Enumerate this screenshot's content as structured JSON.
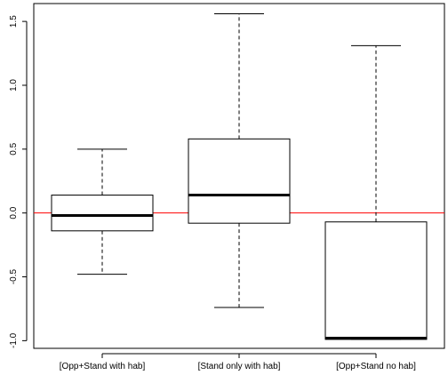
{
  "chart_data": {
    "type": "boxplot",
    "title": "",
    "xlabel": "",
    "ylabel": "",
    "categories": [
      "[Opp+Stand with hab]",
      "[Stand only with hab]",
      "[Opp+Stand no hab]"
    ],
    "boxes": [
      {
        "category": "[Opp+Stand with hab]",
        "whisker_low": -0.48,
        "q1": -0.14,
        "median": -0.02,
        "q3": 0.14,
        "whisker_high": 0.5
      },
      {
        "category": "[Stand only with hab]",
        "whisker_low": -0.74,
        "q1": -0.08,
        "median": 0.14,
        "q3": 0.58,
        "whisker_high": 1.56
      },
      {
        "category": "[Opp+Stand no hab]",
        "whisker_low": -0.99,
        "q1": -0.99,
        "median": -0.98,
        "q3": -0.07,
        "whisker_high": 1.31
      }
    ],
    "reference_line": {
      "y": 0.0,
      "color": "#ff0000"
    },
    "ylim": [
      -1.06,
      1.64
    ],
    "yticks": [
      -1.0,
      -0.5,
      0.0,
      0.5,
      1.0,
      1.5
    ],
    "ytick_labels": [
      "-1.0",
      "-0.5",
      "0.0",
      "0.5",
      "1.0",
      "1.5"
    ],
    "grid": false,
    "legend": "none"
  }
}
